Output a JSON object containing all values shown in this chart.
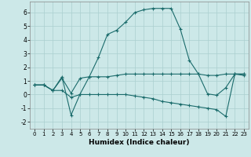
{
  "xlabel": "Humidex (Indice chaleur)",
  "background_color": "#cce8e8",
  "grid_color": "#aacfcf",
  "line_color": "#1a6b6b",
  "xlim": [
    -0.5,
    23.5
  ],
  "ylim": [
    -2.5,
    6.8
  ],
  "yticks": [
    -2,
    -1,
    0,
    1,
    2,
    3,
    4,
    5,
    6
  ],
  "xticks": [
    0,
    1,
    2,
    3,
    4,
    5,
    6,
    7,
    8,
    9,
    10,
    11,
    12,
    13,
    14,
    15,
    16,
    17,
    18,
    19,
    20,
    21,
    22,
    23
  ],
  "series1_x": [
    0,
    1,
    2,
    3,
    4,
    5,
    6,
    7,
    8,
    9,
    10,
    11,
    12,
    13,
    14,
    15,
    16,
    17,
    18,
    19,
    20,
    21,
    22,
    23
  ],
  "series1_y": [
    0.7,
    0.7,
    0.3,
    1.3,
    -1.5,
    0.05,
    1.3,
    2.7,
    4.4,
    4.7,
    5.3,
    6.0,
    6.2,
    6.3,
    6.3,
    6.3,
    4.8,
    2.5,
    1.5,
    0.05,
    -0.05,
    0.5,
    1.5,
    1.5
  ],
  "series2_x": [
    0,
    1,
    2,
    3,
    4,
    5,
    6,
    7,
    8,
    9,
    10,
    11,
    12,
    13,
    14,
    15,
    16,
    17,
    18,
    19,
    20,
    21,
    22,
    23
  ],
  "series2_y": [
    0.7,
    0.7,
    0.3,
    1.2,
    0.1,
    1.2,
    1.3,
    1.3,
    1.3,
    1.4,
    1.5,
    1.5,
    1.5,
    1.5,
    1.5,
    1.5,
    1.5,
    1.5,
    1.5,
    1.4,
    1.4,
    1.5,
    1.5,
    1.5
  ],
  "series3_x": [
    0,
    1,
    2,
    3,
    4,
    5,
    6,
    7,
    8,
    9,
    10,
    11,
    12,
    13,
    14,
    15,
    16,
    17,
    18,
    19,
    20,
    21,
    22,
    23
  ],
  "series3_y": [
    0.7,
    0.7,
    0.3,
    0.3,
    -0.2,
    0.0,
    0.0,
    0.0,
    0.0,
    0.0,
    0.0,
    -0.1,
    -0.2,
    -0.3,
    -0.5,
    -0.6,
    -0.7,
    -0.8,
    -0.9,
    -1.0,
    -1.1,
    -1.6,
    1.5,
    1.4
  ]
}
